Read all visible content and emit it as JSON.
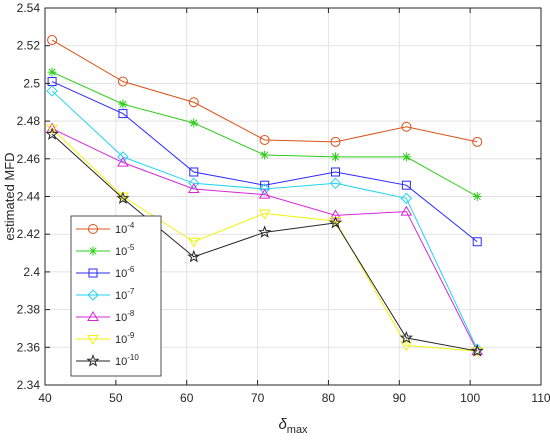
{
  "chart_data": {
    "type": "line",
    "title": "",
    "xlabel": "δ",
    "xlabel_subscript": "max",
    "ylabel": "estimated MFD",
    "xlim": [
      40,
      110
    ],
    "ylim": [
      2.34,
      2.54
    ],
    "xticks": [
      40,
      50,
      60,
      70,
      80,
      90,
      100,
      110
    ],
    "yticks": [
      2.34,
      2.36,
      2.38,
      2.4,
      2.42,
      2.44,
      2.46,
      2.48,
      2.5,
      2.52,
      2.54
    ],
    "ytick_labels": [
      "2.34",
      "2.36",
      "2.38",
      "2.4",
      "2.42",
      "2.44",
      "2.46",
      "2.48",
      "2.5",
      "2.52",
      "2.54"
    ],
    "grid": true,
    "legend_position": "lower-left",
    "x": [
      41,
      51,
      61,
      71,
      81,
      91,
      101
    ],
    "series": [
      {
        "name": "10",
        "exponent": "-4",
        "color": "#d95319",
        "marker": "circle",
        "values": [
          2.523,
          2.501,
          2.49,
          2.47,
          2.469,
          2.477,
          2.469
        ]
      },
      {
        "name": "10",
        "exponent": "-5",
        "color": "#2ecc1a",
        "marker": "asterisk",
        "values": [
          2.506,
          2.489,
          2.479,
          2.462,
          2.461,
          2.461,
          2.44
        ]
      },
      {
        "name": "10",
        "exponent": "-6",
        "color": "#2a2aff",
        "marker": "square",
        "values": [
          2.501,
          2.484,
          2.453,
          2.446,
          2.453,
          2.446,
          2.416
        ]
      },
      {
        "name": "10",
        "exponent": "-7",
        "color": "#22d3f0",
        "marker": "diamond",
        "values": [
          2.496,
          2.461,
          2.447,
          2.444,
          2.447,
          2.439,
          2.359
        ]
      },
      {
        "name": "10",
        "exponent": "-8",
        "color": "#d627d6",
        "marker": "triangle-up",
        "values": [
          2.476,
          2.458,
          2.444,
          2.441,
          2.43,
          2.432,
          2.358
        ]
      },
      {
        "name": "10",
        "exponent": "-9",
        "color": "#f2f20d",
        "marker": "triangle-down",
        "values": [
          2.476,
          2.44,
          2.416,
          2.431,
          2.427,
          2.361,
          2.358
        ]
      },
      {
        "name": "10",
        "exponent": "-10",
        "color": "#262626",
        "marker": "star",
        "values": [
          2.473,
          2.439,
          2.408,
          2.421,
          2.426,
          2.365,
          2.358
        ]
      }
    ]
  }
}
